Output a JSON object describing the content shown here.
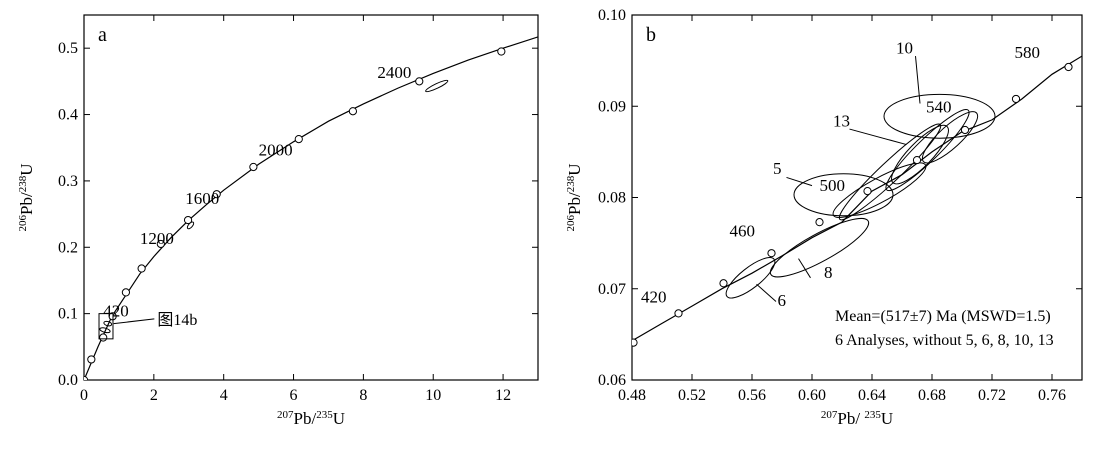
{
  "chart_data": [
    {
      "panel_label": "a",
      "type": "line",
      "xlabel": {
        "sup": "207",
        "main": "Pb/",
        "sup2": "235",
        "main2": "U"
      },
      "ylabel": {
        "sup": "206",
        "main": "Pb/",
        "sup2": "238",
        "main2": "U"
      },
      "xlim": [
        0,
        13
      ],
      "ylim": [
        0,
        0.55
      ],
      "xticks": [
        0,
        2,
        4,
        6,
        8,
        10,
        12
      ],
      "yticks": [
        0.0,
        0.1,
        0.2,
        0.3,
        0.4,
        0.5
      ],
      "xtick_labels": [
        "0",
        "2",
        "4",
        "6",
        "8",
        "10",
        "12"
      ],
      "ytick_labels": [
        "0.0",
        "0.1",
        "0.2",
        "0.3",
        "0.4",
        "0.5"
      ],
      "concordia_curve": {
        "x": [
          0,
          0.4,
          0.8,
          1.2,
          1.6,
          2.0,
          2.5,
          3.0,
          3.5,
          4.0,
          5.0,
          6.0,
          7.0,
          8.0,
          9.0,
          10.0,
          11.0,
          12.0,
          13.0
        ],
        "y": [
          0,
          0.05,
          0.096,
          0.128,
          0.16,
          0.186,
          0.215,
          0.241,
          0.264,
          0.286,
          0.325,
          0.359,
          0.39,
          0.416,
          0.44,
          0.462,
          0.482,
          0.5,
          0.517
        ]
      },
      "age_markers": {
        "x": [
          0,
          0.21,
          0.55,
          0.82,
          1.2,
          1.65,
          2.2,
          2.98,
          3.8,
          4.85,
          6.15,
          7.7,
          9.6,
          11.95
        ],
        "y": [
          0,
          0.031,
          0.064,
          0.096,
          0.132,
          0.168,
          0.205,
          0.241,
          0.28,
          0.321,
          0.363,
          0.405,
          0.45,
          0.495
        ]
      },
      "age_labels": [
        {
          "text": "420",
          "x": 0.55,
          "y": 0.096
        },
        {
          "text": "1200",
          "x": 1.6,
          "y": 0.205
        },
        {
          "text": "1600",
          "x": 2.9,
          "y": 0.265
        },
        {
          "text": "2000",
          "x": 5.0,
          "y": 0.338
        },
        {
          "text": "2400",
          "x": 8.4,
          "y": 0.455
        }
      ],
      "error_ellipses": [
        {
          "cx": 10.1,
          "cy": 0.443,
          "rx": 0.35,
          "ry": 0.0035,
          "angle_data": 0.025
        },
        {
          "cx": 3.05,
          "cy": 0.233,
          "rx": 0.12,
          "ry": 0.0025,
          "angle_data": 0.06
        },
        {
          "cx": 0.6,
          "cy": 0.075,
          "rx": 0.06,
          "ry": 0.008,
          "angle_data": 0.2
        },
        {
          "cx": 0.68,
          "cy": 0.085,
          "rx": 0.06,
          "ry": 0.006,
          "angle_data": 0.2
        }
      ],
      "inset_box": {
        "x0": 0.43,
        "x1": 0.83,
        "y0": 0.062,
        "y1": 0.1
      },
      "annotation": {
        "text": "图14b",
        "x": 2.1,
        "y": 0.083,
        "arrow_to": {
          "x": 0.85,
          "y": 0.085
        }
      }
    },
    {
      "panel_label": "b",
      "type": "line",
      "xlabel": {
        "sup": "207",
        "main": "Pb/ ",
        "sup2": "235",
        "main2": "U"
      },
      "ylabel": {
        "sup": "206",
        "main": "Pb/",
        "sup2": "238",
        "main2": "U"
      },
      "xlim": [
        0.48,
        0.78
      ],
      "ylim": [
        0.06,
        0.1
      ],
      "xticks": [
        0.48,
        0.52,
        0.56,
        0.6,
        0.64,
        0.68,
        0.72,
        0.76
      ],
      "yticks": [
        0.06,
        0.07,
        0.08,
        0.09,
        0.1
      ],
      "xtick_labels": [
        "0.48",
        "0.52",
        "0.56",
        "0.60",
        "0.64",
        "0.68",
        "0.72",
        "0.76"
      ],
      "ytick_labels": [
        "0.06",
        "0.07",
        "0.08",
        "0.09",
        "0.10"
      ],
      "concordia_curve": {
        "x": [
          0.48,
          0.5,
          0.52,
          0.54,
          0.56,
          0.58,
          0.6,
          0.62,
          0.64,
          0.66,
          0.68,
          0.7,
          0.72,
          0.74,
          0.76,
          0.78
        ],
        "y": [
          0.0643,
          0.0662,
          0.0681,
          0.07,
          0.0717,
          0.0736,
          0.0756,
          0.0773,
          0.0807,
          0.0825,
          0.085,
          0.0872,
          0.0885,
          0.0908,
          0.0935,
          0.0955
        ]
      },
      "age_markers": {
        "x": [
          0.481,
          0.511,
          0.541,
          0.573,
          0.605,
          0.637,
          0.67,
          0.702,
          0.736,
          0.771
        ],
        "y": [
          0.0641,
          0.0673,
          0.0706,
          0.0739,
          0.0773,
          0.0807,
          0.0841,
          0.0874,
          0.0908,
          0.0943
        ]
      },
      "age_labels": [
        {
          "text": "420",
          "x": 0.486,
          "y": 0.0685
        },
        {
          "text": "460",
          "x": 0.545,
          "y": 0.0757
        },
        {
          "text": "500",
          "x": 0.605,
          "y": 0.0807
        },
        {
          "text": "540",
          "x": 0.676,
          "y": 0.0893
        },
        {
          "text": "580",
          "x": 0.735,
          "y": 0.0953
        }
      ],
      "point_labels": [
        {
          "text": "10",
          "x": 0.656,
          "y": 0.0958
        },
        {
          "text": "13",
          "x": 0.614,
          "y": 0.0878
        },
        {
          "text": "5",
          "x": 0.574,
          "y": 0.0826
        },
        {
          "text": "8",
          "x": 0.608,
          "y": 0.0712
        },
        {
          "text": "6",
          "x": 0.577,
          "y": 0.0681
        }
      ],
      "error_ellipses": [
        {
          "cx": 0.685,
          "cy": 0.0889,
          "rx": 0.037,
          "ry": 0.0024,
          "angle_data": 0
        },
        {
          "cx": 0.652,
          "cy": 0.0828,
          "rx": 0.046,
          "ry": 0.0011,
          "angle_data": 0.155
        },
        {
          "cx": 0.677,
          "cy": 0.0852,
          "rx": 0.038,
          "ry": 0.0012,
          "angle_data": 0.16
        },
        {
          "cx": 0.672,
          "cy": 0.0847,
          "rx": 0.026,
          "ry": 0.0013,
          "angle_data": 0.17
        },
        {
          "cx": 0.692,
          "cy": 0.0866,
          "rx": 0.024,
          "ry": 0.0012,
          "angle_data": 0.15
        },
        {
          "cx": 0.645,
          "cy": 0.0808,
          "rx": 0.035,
          "ry": 0.0013,
          "angle_data": 0.09
        },
        {
          "cx": 0.621,
          "cy": 0.0803,
          "rx": 0.033,
          "ry": 0.0023,
          "angle_data": 0
        },
        {
          "cx": 0.605,
          "cy": 0.0745,
          "rx": 0.037,
          "ry": 0.0015,
          "angle_data": 0.09
        },
        {
          "cx": 0.559,
          "cy": 0.0712,
          "rx": 0.02,
          "ry": 0.0011,
          "angle_data": 0.13
        }
      ],
      "leaders": [
        {
          "from": {
            "x": 0.669,
            "y": 0.0955
          },
          "to": {
            "x": 0.672,
            "y": 0.0903
          }
        },
        {
          "from": {
            "x": 0.625,
            "y": 0.0875
          },
          "to": {
            "x": 0.663,
            "y": 0.0858
          }
        },
        {
          "from": {
            "x": 0.583,
            "y": 0.0822
          },
          "to": {
            "x": 0.6,
            "y": 0.0813
          }
        },
        {
          "from": {
            "x": 0.599,
            "y": 0.0712
          },
          "to": {
            "x": 0.591,
            "y": 0.0733
          }
        },
        {
          "from": {
            "x": 0.576,
            "y": 0.0686
          },
          "to": {
            "x": 0.563,
            "y": 0.0705
          }
        }
      ],
      "annotation_lines": [
        "Mean=(517±7) Ma  (MSWD=1.5)",
        "6 Analyses, without 5, 6, 8, 10, 13"
      ]
    }
  ]
}
